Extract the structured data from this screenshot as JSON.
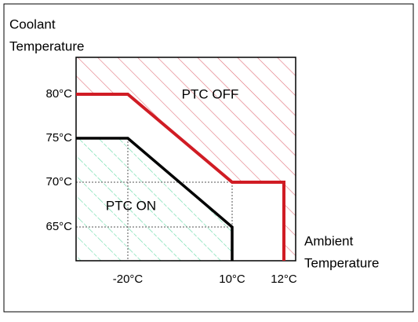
{
  "y_axis_title": [
    "Coolant",
    "Temperature"
  ],
  "x_axis_title": [
    "Ambient",
    "Temperature"
  ],
  "y_labels": [
    "80°C",
    "75°C",
    "70°C",
    "65°C"
  ],
  "x_labels": [
    "-20°C",
    "10°C",
    "12°C"
  ],
  "regions": [
    "PTC OFF",
    "PTC ON"
  ]
}
